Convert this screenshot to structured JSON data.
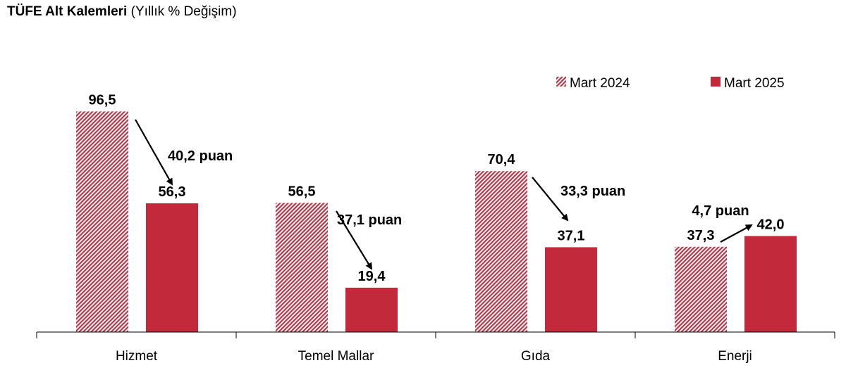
{
  "title": {
    "bold": "TÜFE Alt Kalemleri",
    "sub": "(Yıllık % Değişim)"
  },
  "chart_data": {
    "type": "bar",
    "title": "TÜFE Alt Kalemleri (Yıllık % Değişim)",
    "categories": [
      "Hizmet",
      "Temel Mallar",
      "Gıda",
      "Enerji"
    ],
    "series": [
      {
        "name": "Mart 2024",
        "values": [
          96.5,
          56.5,
          70.4,
          37.3
        ],
        "labels": [
          "96,5",
          "56,5",
          "70,4",
          "37,3"
        ],
        "color": "#b5384a",
        "pattern": "hatched"
      },
      {
        "name": "Mart 2025",
        "values": [
          56.3,
          19.4,
          37.1,
          42.0
        ],
        "labels": [
          "56,3",
          "19,4",
          "37,1",
          "42,0"
        ],
        "color": "#c22a3b",
        "pattern": "solid"
      }
    ],
    "annotations": [
      "40,2 puan",
      "37,1 puan",
      "33,3 puan",
      "4,7 puan"
    ],
    "ylim": [
      0,
      100
    ],
    "grid": false,
    "legend": "top-right"
  }
}
